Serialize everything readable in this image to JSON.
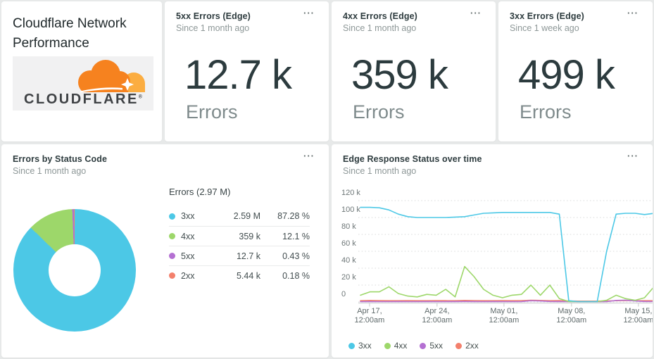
{
  "palette": {
    "blue": "#4cc8e6",
    "green": "#9dd76a",
    "purple": "#b470d2",
    "orange": "#f3806c",
    "cloudflare_orange": "#f6821f",
    "cloudflare_light_orange": "#fbad41"
  },
  "brand_card": {
    "title": "Cloudflare Network Performance",
    "logo_text": "CLOUDFLARE",
    "logo_reg": "®"
  },
  "billboards": [
    {
      "title": "5xx Errors (Edge)",
      "subtitle": "Since 1 month ago",
      "value": "12.7 k",
      "label": "Errors",
      "menu_icon": "···"
    },
    {
      "title": "4xx Errors (Edge)",
      "subtitle": "Since 1 month ago",
      "value": "359 k",
      "label": "Errors",
      "menu_icon": "···"
    },
    {
      "title": "3xx Errors (Edge)",
      "subtitle": "Since 1 week ago",
      "value": "499 k",
      "label": "Errors",
      "menu_icon": "···"
    }
  ],
  "pie_card": {
    "title": "Errors by Status Code",
    "subtitle": "Since 1 month ago",
    "menu_icon": "···",
    "legend_title": "Errors (2.97 M)",
    "rows": [
      {
        "label": "3xx",
        "value": "2.59 M",
        "pct": "87.28 %",
        "color": "#4cc8e6"
      },
      {
        "label": "4xx",
        "value": "359 k",
        "pct": "12.1 %",
        "color": "#9dd76a"
      },
      {
        "label": "5xx",
        "value": "12.7 k",
        "pct": "0.43 %",
        "color": "#b470d2"
      },
      {
        "label": "2xx",
        "value": "5.44 k",
        "pct": "0.18 %",
        "color": "#f3806c"
      }
    ]
  },
  "ts_card": {
    "title": "Edge Response Status over time",
    "subtitle": "Since 1 month ago",
    "menu_icon": "···",
    "legend": [
      {
        "label": "3xx",
        "color": "#4cc8e6"
      },
      {
        "label": "4xx",
        "color": "#9dd76a"
      },
      {
        "label": "5xx",
        "color": "#b470d2"
      },
      {
        "label": "2xx",
        "color": "#f3806c"
      }
    ]
  },
  "chart_data": [
    {
      "type": "pie",
      "title": "Errors by Status Code",
      "subtitle": "Since 1 month ago",
      "total_label": "Errors (2.97 M)",
      "labels": [
        "3xx",
        "4xx",
        "5xx",
        "2xx"
      ],
      "values_display": [
        "2.59 M",
        "359 k",
        "12.7 k",
        "5.44 k"
      ],
      "values_pct": [
        87.28,
        12.1,
        0.43,
        0.18
      ],
      "colors": [
        "#4cc8e6",
        "#9dd76a",
        "#b470d2",
        "#f3806c"
      ],
      "donut": true,
      "start_angle_deg": 0,
      "direction": "clockwise"
    },
    {
      "type": "line",
      "title": "Edge Response Status over time",
      "subtitle": "Since 1 month ago",
      "unit": "k (thousands of responses)",
      "ylim": [
        0,
        120
      ],
      "y_tick_labels": [
        "0",
        "20 k",
        "40 k",
        "60 k",
        "80 k",
        "100 k",
        "120 k"
      ],
      "x_tick_labels": [
        [
          "Apr 17,",
          "12:00am"
        ],
        [
          "Apr 24,",
          "12:00am"
        ],
        [
          "May 01,",
          "12:00am"
        ],
        [
          "May 08,",
          "12:00am"
        ],
        [
          "May 15,",
          "12:00am"
        ]
      ],
      "grid": "dotted horizontal",
      "legend_position": "bottom",
      "series": [
        {
          "name": "3xx",
          "color": "#4cc8e6",
          "values": [
            112,
            112,
            111.5,
            109,
            104,
            101,
            100,
            100,
            100,
            100,
            100.5,
            101,
            103,
            105,
            105.5,
            106,
            106,
            106,
            106,
            106,
            106,
            104,
            1.5,
            0.4,
            0.4,
            0.4,
            60,
            104,
            105,
            105,
            103.5,
            105
          ]
        },
        {
          "name": "4xx",
          "color": "#9dd76a",
          "values": [
            8,
            12,
            12,
            18,
            10,
            7,
            6,
            9,
            8,
            15,
            6,
            42,
            30,
            15,
            8,
            5,
            8,
            9,
            20,
            8,
            20,
            4,
            0.5,
            0.4,
            0.4,
            0.4,
            2,
            8,
            4,
            2,
            5,
            18
          ]
        },
        {
          "name": "5xx",
          "color": "#b470d2",
          "values": [
            0.4,
            0.5,
            0.4,
            0.4,
            0.5,
            0.4,
            0.4,
            0.5,
            0.4,
            0.4,
            0.5,
            0.6,
            0.5,
            0.4,
            0.5,
            0.4,
            0.4,
            0.5,
            1.5,
            1.2,
            0.6,
            0.5,
            0.4,
            0.3,
            0.3,
            0.3,
            0.4,
            1.8,
            2.2,
            1.2,
            0.6,
            0.5
          ]
        },
        {
          "name": "2xx",
          "color": "#f3806c",
          "values": [
            1.5,
            1.8,
            1.6,
            1.5,
            1.5,
            1.6,
            1.5,
            1.5,
            1.7,
            1.6,
            1.5,
            1.8,
            1.7,
            1.5,
            1.5,
            1.6,
            1.5,
            1.7,
            2.0,
            1.8,
            1.5,
            1.6,
            1.2,
            1.0,
            1.0,
            1.0,
            1.2,
            1.5,
            1.7,
            1.5,
            1.5,
            1.6
          ]
        }
      ]
    }
  ]
}
